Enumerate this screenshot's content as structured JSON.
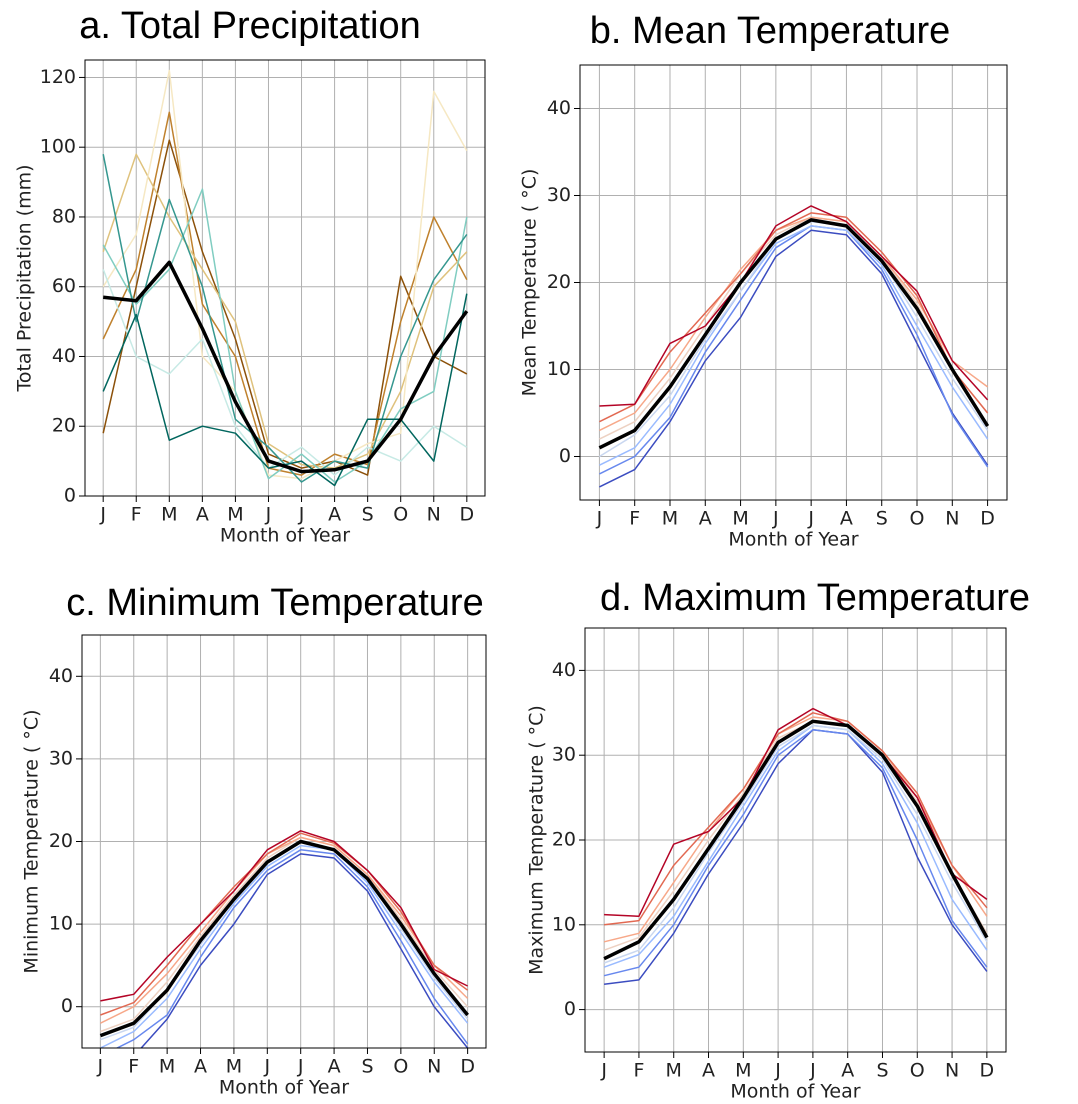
{
  "chart_data": [
    {
      "type": "line",
      "title": "a. Total Precipitation",
      "xlabel": "Month of Year",
      "ylabel": "Total Precipitation (mm)",
      "categories": [
        "J",
        "F",
        "M",
        "A",
        "M",
        "J",
        "J",
        "A",
        "S",
        "O",
        "N",
        "D"
      ],
      "ylim": [
        0,
        125
      ],
      "yticks": [
        0,
        20,
        40,
        60,
        80,
        100,
        120
      ],
      "grid": true,
      "series": [
        {
          "color": "#8c510a",
          "width": 1.5,
          "values": [
            18,
            60,
            102,
            70,
            45,
            12,
            8,
            10,
            6,
            63,
            40,
            35
          ]
        },
        {
          "color": "#bf812d",
          "width": 1.5,
          "values": [
            45,
            65,
            110,
            55,
            40,
            8,
            6,
            12,
            9,
            50,
            80,
            62
          ]
        },
        {
          "color": "#dfc27d",
          "width": 1.5,
          "values": [
            70,
            98,
            80,
            65,
            50,
            15,
            9,
            8,
            12,
            30,
            60,
            70
          ]
        },
        {
          "color": "#f6e8c3",
          "width": 1.5,
          "values": [
            60,
            75,
            122,
            40,
            30,
            6,
            5,
            10,
            15,
            18,
            116,
            99
          ]
        },
        {
          "color": "#c7eae5",
          "width": 1.5,
          "values": [
            65,
            40,
            35,
            45,
            20,
            8,
            14,
            6,
            14,
            10,
            20,
            14
          ]
        },
        {
          "color": "#80cdc1",
          "width": 1.5,
          "values": [
            72,
            55,
            65,
            88,
            30,
            5,
            12,
            4,
            10,
            25,
            30,
            80
          ]
        },
        {
          "color": "#35978f",
          "width": 1.5,
          "values": [
            98,
            50,
            85,
            60,
            22,
            14,
            4,
            10,
            8,
            40,
            62,
            75
          ]
        },
        {
          "color": "#01665e",
          "width": 1.5,
          "values": [
            30,
            52,
            16,
            20,
            18,
            8,
            10,
            3,
            22,
            22,
            10,
            58
          ]
        },
        {
          "color": "#000000",
          "width": 3.5,
          "values": [
            57,
            56,
            67,
            48,
            27,
            10,
            7,
            7.5,
            10,
            22,
            40,
            53
          ]
        }
      ]
    },
    {
      "type": "line",
      "title": "b. Mean Temperature",
      "xlabel": "Month of Year",
      "ylabel": "Mean Temperature ( °C)",
      "categories": [
        "J",
        "F",
        "M",
        "A",
        "M",
        "J",
        "J",
        "A",
        "S",
        "O",
        "N",
        "D"
      ],
      "ylim": [
        -5,
        45
      ],
      "yticks": [
        0,
        10,
        20,
        30,
        40
      ],
      "grid": true,
      "series": [
        {
          "color": "#3b4cc0",
          "width": 1.5,
          "values": [
            -3.5,
            -1.5,
            4,
            11,
            16,
            23,
            26,
            25.5,
            21,
            13,
            5,
            -1
          ]
        },
        {
          "color": "#6788ee",
          "width": 1.5,
          "values": [
            -2,
            0,
            4.5,
            12,
            18,
            24,
            26.5,
            26,
            21.5,
            14,
            4.8,
            -1.2
          ]
        },
        {
          "color": "#9abbff",
          "width": 1.5,
          "values": [
            -1,
            1,
            6,
            13,
            19,
            24.5,
            26.5,
            26,
            22,
            15,
            8,
            2
          ]
        },
        {
          "color": "#c9d7f0",
          "width": 1.5,
          "values": [
            0,
            2.5,
            7,
            13.5,
            19,
            25,
            27,
            26.5,
            22.5,
            16,
            9,
            3
          ]
        },
        {
          "color": "#edd1c2",
          "width": 1.5,
          "values": [
            2,
            4,
            9,
            15,
            21,
            25.5,
            27.5,
            27,
            23,
            17.5,
            10,
            5
          ]
        },
        {
          "color": "#f7a889",
          "width": 1.5,
          "values": [
            3,
            5,
            10,
            16,
            21.5,
            26,
            27.5,
            27,
            23,
            18,
            11,
            8
          ]
        },
        {
          "color": "#e26952",
          "width": 1.5,
          "values": [
            4,
            6,
            12,
            16.5,
            21,
            26,
            28,
            27.5,
            23.5,
            18.5,
            10,
            5
          ]
        },
        {
          "color": "#b40426",
          "width": 1.5,
          "values": [
            5.8,
            6,
            13,
            15,
            20,
            26.5,
            28.8,
            27,
            23,
            19,
            11,
            6.5
          ]
        },
        {
          "color": "#000000",
          "width": 3.5,
          "values": [
            1,
            3,
            8,
            14,
            20,
            25,
            27.2,
            26.5,
            22.5,
            17,
            10,
            3.5
          ]
        }
      ]
    },
    {
      "type": "line",
      "title": "c. Minimum Temperature",
      "xlabel": "Month of Year",
      "ylabel": "Minimum Temperature ( °C)",
      "categories": [
        "J",
        "F",
        "M",
        "A",
        "M",
        "J",
        "J",
        "A",
        "S",
        "O",
        "N",
        "D"
      ],
      "ylim": [
        -5,
        45
      ],
      "yticks": [
        0,
        10,
        20,
        30,
        40
      ],
      "grid": true,
      "series": [
        {
          "color": "#3b4cc0",
          "width": 1.5,
          "values": [
            -7,
            -6,
            -1.5,
            5,
            10,
            16,
            18.5,
            18,
            14,
            7,
            0,
            -5
          ]
        },
        {
          "color": "#6788ee",
          "width": 1.5,
          "values": [
            -6,
            -4,
            -1,
            6,
            12,
            16.5,
            19,
            18.5,
            14.5,
            8,
            1,
            -4.5
          ]
        },
        {
          "color": "#9abbff",
          "width": 1.5,
          "values": [
            -5,
            -3,
            1,
            7,
            12.5,
            17,
            19.5,
            19,
            15,
            9,
            3,
            -2
          ]
        },
        {
          "color": "#c9d7f0",
          "width": 1.5,
          "values": [
            -4,
            -2.5,
            2,
            7.5,
            13,
            17.5,
            20,
            19,
            15.5,
            9.5,
            3.5,
            -1.5
          ]
        },
        {
          "color": "#edd1c2",
          "width": 1.5,
          "values": [
            -3,
            -1.5,
            3,
            8.5,
            13.5,
            18,
            20.5,
            19.5,
            16,
            10.5,
            4.5,
            0
          ]
        },
        {
          "color": "#f7a889",
          "width": 1.5,
          "values": [
            -2,
            0,
            4,
            9,
            14,
            18.5,
            20.5,
            19.5,
            16,
            11,
            5,
            1
          ]
        },
        {
          "color": "#e26952",
          "width": 1.5,
          "values": [
            -1,
            0.5,
            5,
            10,
            14.5,
            18.5,
            21,
            19.8,
            16.5,
            11.5,
            5,
            2
          ]
        },
        {
          "color": "#b40426",
          "width": 1.5,
          "values": [
            0.7,
            1.5,
            6,
            10,
            14,
            19,
            21.3,
            20,
            16.5,
            12,
            4.5,
            2.5
          ]
        },
        {
          "color": "#000000",
          "width": 3.5,
          "values": [
            -3.5,
            -2,
            2,
            8,
            13,
            17.5,
            20,
            19,
            15.5,
            10,
            4,
            -1
          ]
        }
      ]
    },
    {
      "type": "line",
      "title": "d. Maximum Temperature",
      "xlabel": "Month of Year",
      "ylabel": "Maximum Temperature ( °C)",
      "categories": [
        "J",
        "F",
        "M",
        "A",
        "M",
        "J",
        "J",
        "A",
        "S",
        "O",
        "N",
        "D"
      ],
      "ylim": [
        -5,
        45
      ],
      "yticks": [
        0,
        10,
        20,
        30,
        40
      ],
      "grid": true,
      "series": [
        {
          "color": "#3b4cc0",
          "width": 1.5,
          "values": [
            3,
            3.5,
            9,
            16,
            22,
            29,
            33,
            32.5,
            28,
            18,
            10,
            4.5
          ]
        },
        {
          "color": "#6788ee",
          "width": 1.5,
          "values": [
            4,
            5,
            10,
            17,
            23,
            30,
            33,
            32.5,
            28.5,
            20,
            10.5,
            5
          ]
        },
        {
          "color": "#9abbff",
          "width": 1.5,
          "values": [
            5,
            6.5,
            11,
            17.5,
            24,
            30.5,
            33.5,
            33,
            29,
            22,
            13,
            7
          ]
        },
        {
          "color": "#c9d7f0",
          "width": 1.5,
          "values": [
            5.5,
            7,
            12,
            18.5,
            24.5,
            31,
            33.5,
            33,
            29.5,
            23,
            15,
            8
          ]
        },
        {
          "color": "#edd1c2",
          "width": 1.5,
          "values": [
            7,
            8.5,
            14,
            20,
            25.5,
            32,
            34,
            33.5,
            30,
            24.5,
            16,
            9
          ]
        },
        {
          "color": "#f7a889",
          "width": 1.5,
          "values": [
            8,
            9,
            15,
            21,
            26,
            32.5,
            34.5,
            34,
            30.5,
            25,
            17,
            11
          ]
        },
        {
          "color": "#e26952",
          "width": 1.5,
          "values": [
            10,
            10.5,
            17,
            21.5,
            26,
            32.5,
            35,
            34,
            30.5,
            25.5,
            17,
            12
          ]
        },
        {
          "color": "#b40426",
          "width": 1.5,
          "values": [
            11.2,
            11,
            19.5,
            21,
            25,
            33,
            35.5,
            33.5,
            30,
            25,
            16,
            13
          ]
        },
        {
          "color": "#000000",
          "width": 3.5,
          "values": [
            6,
            8,
            13,
            19,
            25,
            31.5,
            34,
            33.5,
            30,
            24,
            16,
            8.5
          ]
        }
      ]
    }
  ]
}
